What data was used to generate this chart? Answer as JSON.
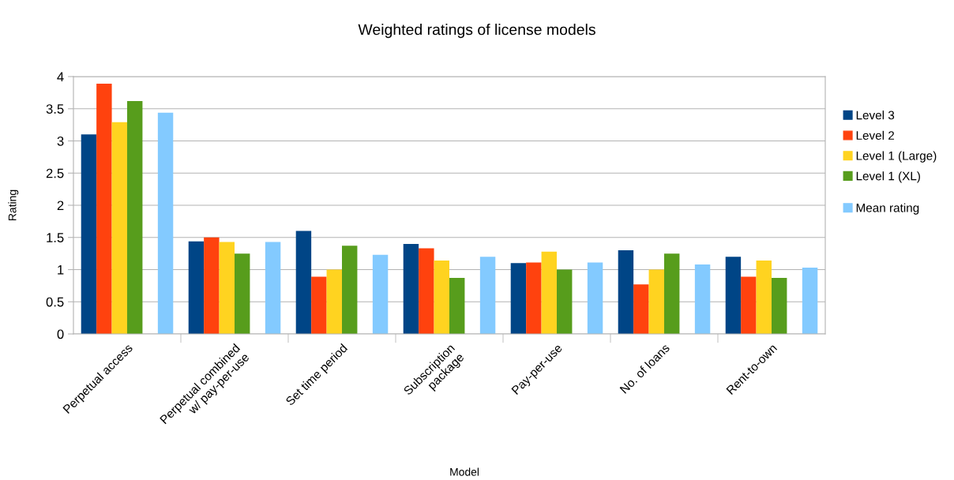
{
  "chart_data": {
    "type": "bar",
    "title": "Weighted ratings of license models",
    "xlabel": "Model",
    "ylabel": "Rating",
    "categories": [
      "Perpetual access",
      "Perpetual combined\nw/ pay-per-use",
      "Set time period",
      "Subscription\npackage",
      "Pay-per-use",
      "No. of loans",
      "Rent-to-own"
    ],
    "series": [
      {
        "name": "Level 3",
        "color": "#004586",
        "values": [
          3.1,
          1.44,
          1.6,
          1.4,
          1.1,
          1.3,
          1.2
        ]
      },
      {
        "name": "Level 2",
        "color": "#ff420e",
        "values": [
          3.89,
          1.5,
          0.89,
          1.33,
          1.11,
          0.77,
          0.89
        ]
      },
      {
        "name": "Level 1 (Large)",
        "color": "#ffd320",
        "values": [
          3.29,
          1.43,
          1.0,
          1.14,
          1.28,
          1.0,
          1.14
        ]
      },
      {
        "name": "Level 1 (XL)",
        "color": "#579d1c",
        "values": [
          3.62,
          1.25,
          1.37,
          0.87,
          1.0,
          1.25,
          0.87
        ]
      },
      {
        "name": "Mean rating",
        "color": "#83caff",
        "values": [
          3.44,
          1.43,
          1.23,
          1.2,
          1.11,
          1.08,
          1.03
        ]
      }
    ],
    "ylim": [
      0,
      4
    ],
    "yticks": [
      0,
      0.5,
      1,
      1.5,
      2,
      2.5,
      3,
      3.5,
      4
    ],
    "grid": "y",
    "legend": "right"
  }
}
